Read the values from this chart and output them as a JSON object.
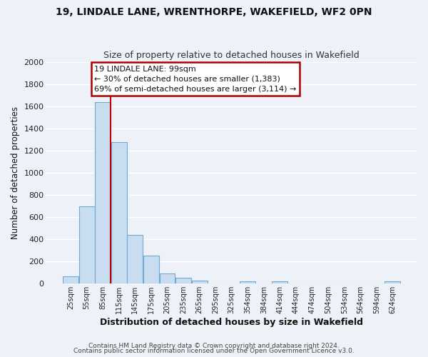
{
  "title": "19, LINDALE LANE, WRENTHORPE, WAKEFIELD, WF2 0PN",
  "subtitle": "Size of property relative to detached houses in Wakefield",
  "xlabel": "Distribution of detached houses by size in Wakefield",
  "ylabel": "Number of detached properties",
  "bar_color": "#c9ddf0",
  "bar_edge_color": "#6aaad4",
  "categories": [
    "25sqm",
    "55sqm",
    "85sqm",
    "115sqm",
    "145sqm",
    "175sqm",
    "205sqm",
    "235sqm",
    "265sqm",
    "295sqm",
    "325sqm",
    "354sqm",
    "384sqm",
    "414sqm",
    "444sqm",
    "474sqm",
    "504sqm",
    "534sqm",
    "564sqm",
    "594sqm",
    "624sqm"
  ],
  "values": [
    65,
    695,
    1640,
    1280,
    435,
    250,
    90,
    50,
    25,
    0,
    0,
    15,
    0,
    15,
    0,
    0,
    0,
    0,
    0,
    0,
    15
  ],
  "ylim": [
    0,
    2000
  ],
  "yticks": [
    0,
    200,
    400,
    600,
    800,
    1000,
    1200,
    1400,
    1600,
    1800,
    2000
  ],
  "red_line_bin_index": 2,
  "annotation_title": "19 LINDALE LANE: 99sqm",
  "annotation_line1": "← 30% of detached houses are smaller (1,383)",
  "annotation_line2": "69% of semi-detached houses are larger (3,114) →",
  "annotation_box_color": "#ffffff",
  "annotation_box_edge": "#aa0000",
  "red_line_color": "#cc0000",
  "background_color": "#eef2f8",
  "grid_color": "#ffffff",
  "footer1": "Contains HM Land Registry data © Crown copyright and database right 2024.",
  "footer2": "Contains public sector information licensed under the Open Government Licence v3.0."
}
